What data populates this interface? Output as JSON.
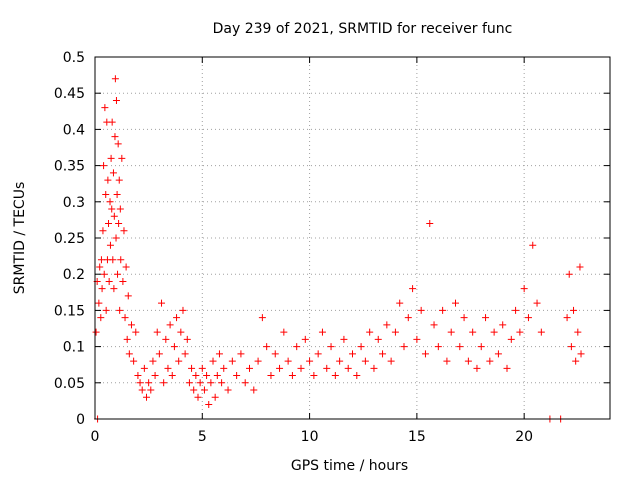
{
  "chart_data": {
    "type": "scatter",
    "title": "Day 239 of 2021, SRMTID for receiver func",
    "xlabel": "GPS time / hours",
    "ylabel": "SRMTID / TECUs",
    "xlim": [
      0,
      24
    ],
    "ylim": [
      0,
      0.5
    ],
    "x_ticks": [
      0,
      5,
      10,
      15,
      20
    ],
    "x_tick_labels": [
      "0",
      "5",
      "10",
      "15",
      "20"
    ],
    "y_ticks": [
      0,
      0.05,
      0.1,
      0.15,
      0.2,
      0.25,
      0.3,
      0.35,
      0.4,
      0.45,
      0.5
    ],
    "y_tick_labels": [
      "0",
      "0.05",
      "0.1",
      "0.15",
      "0.2",
      "0.25",
      "0.3",
      "0.35",
      "0.4",
      "0.45",
      "0.5"
    ],
    "grid": true,
    "legend": false,
    "marker": "plus",
    "color": "#ff0000",
    "series": [
      {
        "name": "",
        "points": [
          [
            0.05,
            0.12
          ],
          [
            0.1,
            0.19
          ],
          [
            0.12,
            0.0
          ],
          [
            0.18,
            0.16
          ],
          [
            0.22,
            0.21
          ],
          [
            0.27,
            0.14
          ],
          [
            0.3,
            0.22
          ],
          [
            0.33,
            0.18
          ],
          [
            0.37,
            0.26
          ],
          [
            0.4,
            0.35
          ],
          [
            0.43,
            0.2
          ],
          [
            0.46,
            0.43
          ],
          [
            0.5,
            0.31
          ],
          [
            0.52,
            0.15
          ],
          [
            0.55,
            0.41
          ],
          [
            0.58,
            0.22
          ],
          [
            0.6,
            0.33
          ],
          [
            0.63,
            0.27
          ],
          [
            0.66,
            0.19
          ],
          [
            0.7,
            0.3
          ],
          [
            0.72,
            0.24
          ],
          [
            0.75,
            0.36
          ],
          [
            0.78,
            0.29
          ],
          [
            0.8,
            0.41
          ],
          [
            0.83,
            0.22
          ],
          [
            0.86,
            0.34
          ],
          [
            0.88,
            0.18
          ],
          [
            0.9,
            0.28
          ],
          [
            0.93,
            0.39
          ],
          [
            0.95,
            0.47
          ],
          [
            0.98,
            0.25
          ],
          [
            1.0,
            0.44
          ],
          [
            1.03,
            0.31
          ],
          [
            1.05,
            0.2
          ],
          [
            1.08,
            0.38
          ],
          [
            1.1,
            0.27
          ],
          [
            1.13,
            0.33
          ],
          [
            1.15,
            0.15
          ],
          [
            1.18,
            0.29
          ],
          [
            1.2,
            0.22
          ],
          [
            1.25,
            0.36
          ],
          [
            1.3,
            0.19
          ],
          [
            1.35,
            0.26
          ],
          [
            1.4,
            0.14
          ],
          [
            1.45,
            0.21
          ],
          [
            1.5,
            0.11
          ],
          [
            1.55,
            0.17
          ],
          [
            1.6,
            0.09
          ],
          [
            1.7,
            0.13
          ],
          [
            1.8,
            0.08
          ],
          [
            1.9,
            0.12
          ],
          [
            2.0,
            0.06
          ],
          [
            2.1,
            0.05
          ],
          [
            2.2,
            0.04
          ],
          [
            2.3,
            0.07
          ],
          [
            2.4,
            0.03
          ],
          [
            2.5,
            0.05
          ],
          [
            2.6,
            0.04
          ],
          [
            2.7,
            0.08
          ],
          [
            2.8,
            0.06
          ],
          [
            2.9,
            0.12
          ],
          [
            3.0,
            0.09
          ],
          [
            3.1,
            0.16
          ],
          [
            3.2,
            0.05
          ],
          [
            3.3,
            0.11
          ],
          [
            3.4,
            0.07
          ],
          [
            3.5,
            0.13
          ],
          [
            3.6,
            0.06
          ],
          [
            3.7,
            0.1
          ],
          [
            3.8,
            0.14
          ],
          [
            3.9,
            0.08
          ],
          [
            4.0,
            0.12
          ],
          [
            4.1,
            0.15
          ],
          [
            4.2,
            0.09
          ],
          [
            4.3,
            0.11
          ],
          [
            4.4,
            0.05
          ],
          [
            4.5,
            0.07
          ],
          [
            4.6,
            0.04
          ],
          [
            4.7,
            0.06
          ],
          [
            4.8,
            0.03
          ],
          [
            4.9,
            0.05
          ],
          [
            5.0,
            0.07
          ],
          [
            5.1,
            0.04
          ],
          [
            5.2,
            0.06
          ],
          [
            5.3,
            0.02
          ],
          [
            5.4,
            0.05
          ],
          [
            5.5,
            0.08
          ],
          [
            5.6,
            0.03
          ],
          [
            5.7,
            0.06
          ],
          [
            5.8,
            0.09
          ],
          [
            5.9,
            0.05
          ],
          [
            6.0,
            0.07
          ],
          [
            6.2,
            0.04
          ],
          [
            6.4,
            0.08
          ],
          [
            6.6,
            0.06
          ],
          [
            6.8,
            0.09
          ],
          [
            7.0,
            0.05
          ],
          [
            7.2,
            0.07
          ],
          [
            7.4,
            0.04
          ],
          [
            7.6,
            0.08
          ],
          [
            7.8,
            0.14
          ],
          [
            8.0,
            0.1
          ],
          [
            8.2,
            0.06
          ],
          [
            8.4,
            0.09
          ],
          [
            8.6,
            0.07
          ],
          [
            8.8,
            0.12
          ],
          [
            9.0,
            0.08
          ],
          [
            9.2,
            0.06
          ],
          [
            9.4,
            0.1
          ],
          [
            9.6,
            0.07
          ],
          [
            9.8,
            0.11
          ],
          [
            10.0,
            0.08
          ],
          [
            10.2,
            0.06
          ],
          [
            10.4,
            0.09
          ],
          [
            10.6,
            0.12
          ],
          [
            10.8,
            0.07
          ],
          [
            11.0,
            0.1
          ],
          [
            11.2,
            0.06
          ],
          [
            11.4,
            0.08
          ],
          [
            11.6,
            0.11
          ],
          [
            11.8,
            0.07
          ],
          [
            12.0,
            0.09
          ],
          [
            12.2,
            0.06
          ],
          [
            12.4,
            0.1
          ],
          [
            12.6,
            0.08
          ],
          [
            12.8,
            0.12
          ],
          [
            13.0,
            0.07
          ],
          [
            13.2,
            0.11
          ],
          [
            13.4,
            0.09
          ],
          [
            13.6,
            0.13
          ],
          [
            13.8,
            0.08
          ],
          [
            14.0,
            0.12
          ],
          [
            14.2,
            0.16
          ],
          [
            14.4,
            0.1
          ],
          [
            14.6,
            0.14
          ],
          [
            14.8,
            0.18
          ],
          [
            15.0,
            0.11
          ],
          [
            15.2,
            0.15
          ],
          [
            15.4,
            0.09
          ],
          [
            15.6,
            0.27
          ],
          [
            15.8,
            0.13
          ],
          [
            16.0,
            0.1
          ],
          [
            16.2,
            0.15
          ],
          [
            16.4,
            0.08
          ],
          [
            16.6,
            0.12
          ],
          [
            16.8,
            0.16
          ],
          [
            17.0,
            0.1
          ],
          [
            17.2,
            0.14
          ],
          [
            17.4,
            0.08
          ],
          [
            17.6,
            0.12
          ],
          [
            17.8,
            0.07
          ],
          [
            18.0,
            0.1
          ],
          [
            18.2,
            0.14
          ],
          [
            18.4,
            0.08
          ],
          [
            18.6,
            0.12
          ],
          [
            18.8,
            0.09
          ],
          [
            19.0,
            0.13
          ],
          [
            19.2,
            0.07
          ],
          [
            19.4,
            0.11
          ],
          [
            19.6,
            0.15
          ],
          [
            19.8,
            0.12
          ],
          [
            20.0,
            0.18
          ],
          [
            20.2,
            0.14
          ],
          [
            20.4,
            0.24
          ],
          [
            20.6,
            0.16
          ],
          [
            20.8,
            0.12
          ],
          [
            21.2,
            0.0
          ],
          [
            21.7,
            0.0
          ],
          [
            22.0,
            0.14
          ],
          [
            22.1,
            0.2
          ],
          [
            22.2,
            0.1
          ],
          [
            22.3,
            0.15
          ],
          [
            22.4,
            0.08
          ],
          [
            22.5,
            0.12
          ],
          [
            22.6,
            0.21
          ],
          [
            22.65,
            0.09
          ]
        ]
      }
    ]
  }
}
